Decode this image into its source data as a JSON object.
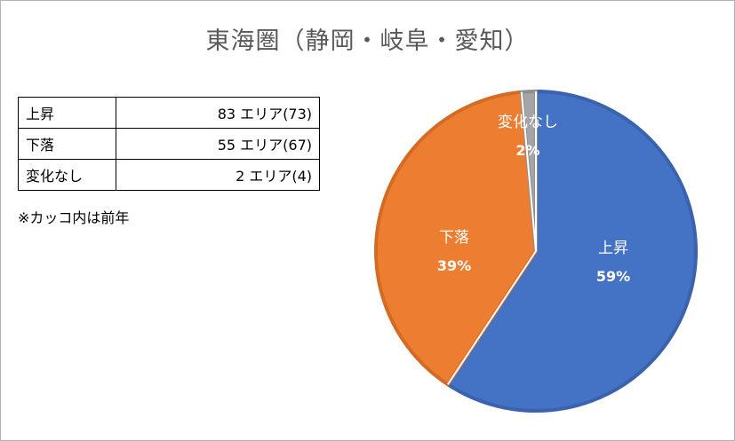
{
  "title": "東海圏（静岡・岐阜・愛知）",
  "table": {
    "rows": [
      {
        "label": "上昇",
        "value": "83 エリア(73)"
      },
      {
        "label": "下落",
        "value": "55 エリア(67)"
      },
      {
        "label": "変化なし",
        "value": "2 エリア(4)"
      }
    ]
  },
  "note": "※カッコ内は前年",
  "chart_data": {
    "type": "pie",
    "title": "東海圏（静岡・岐阜・愛知）",
    "slices": [
      {
        "name": "上昇",
        "value": 83,
        "percent_label": "59%",
        "color": "#4472C4",
        "edge": "#3b63ad"
      },
      {
        "name": "下落",
        "value": 55,
        "percent_label": "39%",
        "color": "#ED7D31",
        "edge": "#d36b25"
      },
      {
        "name": "変化なし",
        "value": 2,
        "percent_label": "2%",
        "color": "#A5A5A5",
        "edge": "#8f8f8f"
      }
    ],
    "start_angle_deg": 0,
    "direction": "clockwise",
    "legend": "none"
  }
}
